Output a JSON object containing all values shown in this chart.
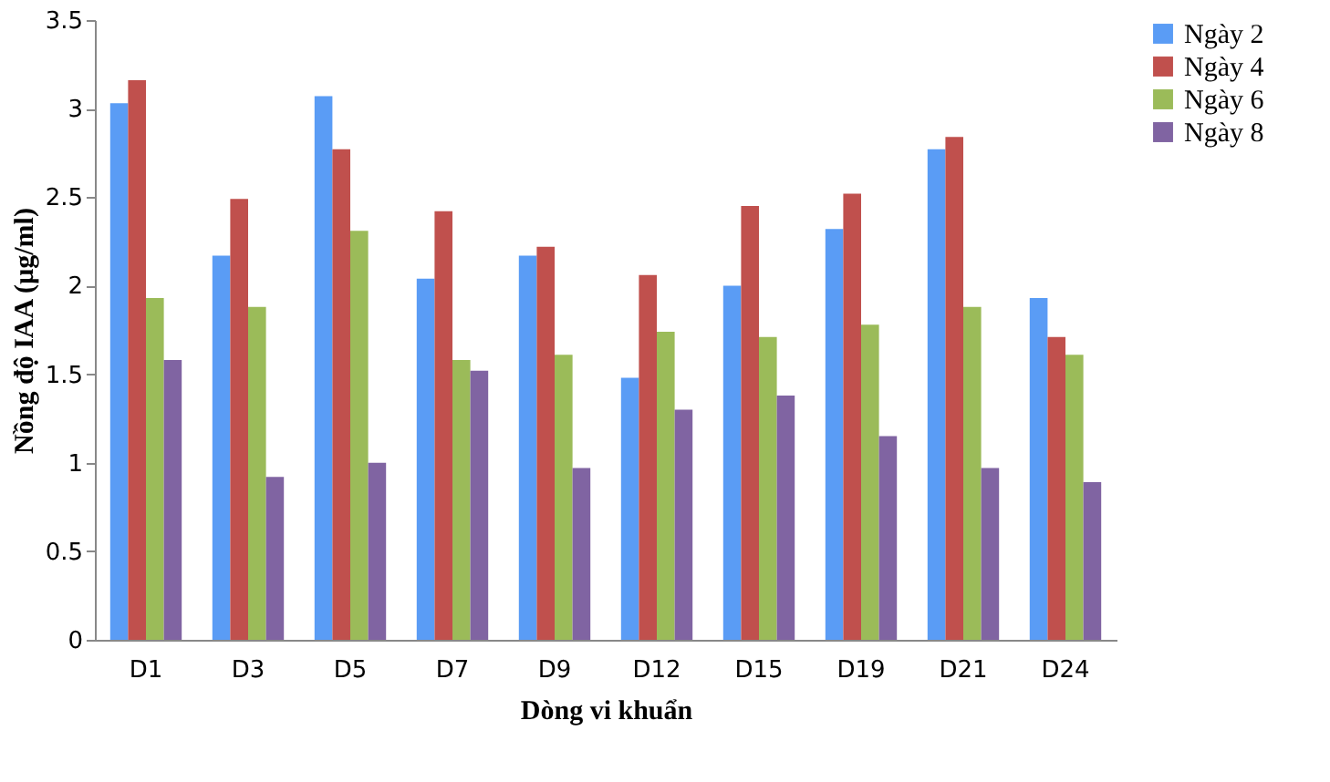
{
  "chart_data": {
    "type": "bar",
    "xlabel": "Dòng vi khuẩn",
    "ylabel": "Nồng độ IAA (µg/ml)",
    "categories": [
      "D1",
      "D3",
      "D5",
      "D7",
      "D9",
      "D12",
      "D15",
      "D19",
      "D21",
      "D24"
    ],
    "series": [
      {
        "name": "Ngày 2",
        "color": "#5a9cf5",
        "values": [
          3.03,
          2.17,
          3.07,
          2.04,
          2.17,
          1.48,
          2.0,
          2.32,
          2.77,
          1.93
        ]
      },
      {
        "name": "Ngày 4",
        "color": "#c0504d",
        "values": [
          3.16,
          2.49,
          2.77,
          2.42,
          2.22,
          2.06,
          2.45,
          2.52,
          2.84,
          1.71
        ]
      },
      {
        "name": "Ngày 6",
        "color": "#9bbb59",
        "values": [
          1.93,
          1.88,
          2.31,
          1.58,
          1.61,
          1.74,
          1.71,
          1.78,
          1.88,
          1.61
        ]
      },
      {
        "name": "Ngày 8",
        "color": "#8064a2",
        "values": [
          1.58,
          0.92,
          1.0,
          1.52,
          0.97,
          1.3,
          1.38,
          1.15,
          0.97,
          0.89
        ]
      }
    ],
    "ylim": [
      0,
      3.5
    ],
    "yticks": [
      0,
      0.5,
      1,
      1.5,
      2,
      2.5,
      3,
      3.5
    ],
    "grid": false,
    "legend": "right"
  }
}
